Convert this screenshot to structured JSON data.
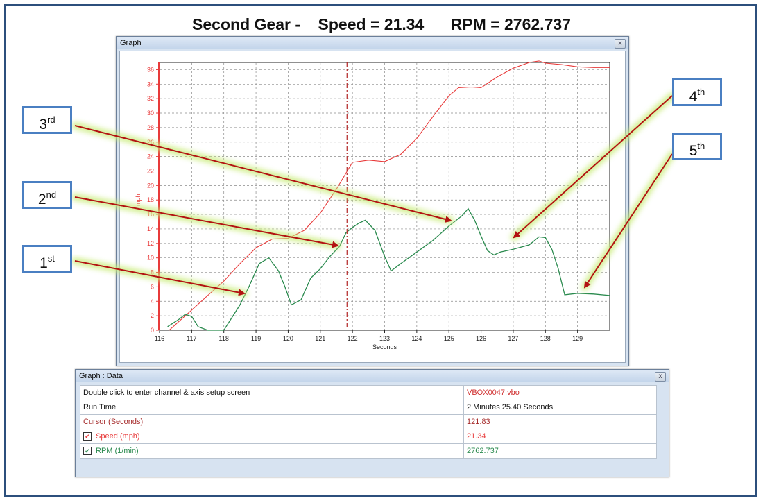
{
  "headline": {
    "gear": "Second Gear -",
    "speed": "Speed = 21.34",
    "rpm": "RPM = 2762.737"
  },
  "graph_window": {
    "title": "Graph",
    "close": "x"
  },
  "data_window": {
    "title": "Graph : Data",
    "close": "x",
    "rows": [
      {
        "label": "Double click to enter channel & axis setup screen",
        "value": "VBOX0047.vbo"
      },
      {
        "label": "Run Time",
        "value": "2 Minutes 25.40 Seconds"
      },
      {
        "label": "Cursor (Seconds)",
        "value": "121.83"
      },
      {
        "label": "Speed (mph)",
        "value": "21.34"
      },
      {
        "label": "RPM (1/min)",
        "value": "2762.737"
      }
    ]
  },
  "callouts": [
    {
      "num": "1",
      "sup": "st"
    },
    {
      "num": "2",
      "sup": "nd"
    },
    {
      "num": "3",
      "sup": "rd"
    },
    {
      "num": "4",
      "sup": "th"
    },
    {
      "num": "5",
      "sup": "th"
    }
  ],
  "colors": {
    "speed": "#e83a3a",
    "rpm": "#2a8a4e",
    "cursor": "#b22222",
    "arrow": "#b31212"
  },
  "chart_data": {
    "type": "line",
    "xlabel": "Seconds",
    "ylabel": "mph",
    "xlim": [
      116,
      130
    ],
    "ylim": [
      0,
      37
    ],
    "x_ticks": [
      116,
      117,
      118,
      119,
      120,
      121,
      122,
      123,
      124,
      125,
      126,
      127,
      128,
      129
    ],
    "y_ticks": [
      0,
      2,
      4,
      6,
      8,
      10,
      12,
      14,
      16,
      18,
      20,
      22,
      24,
      26,
      28,
      30,
      32,
      34,
      36
    ],
    "cursor_x": 121.83,
    "series": [
      {
        "name": "Speed (mph)",
        "x": [
          116.3,
          117,
          117.5,
          118,
          118.5,
          119,
          119.5,
          120,
          120.5,
          121,
          121.5,
          122,
          122.5,
          123,
          123.5,
          124,
          124.5,
          125,
          125.3,
          125.7,
          126,
          126.5,
          127,
          127.5,
          127.8,
          128,
          128.5,
          129,
          129.5,
          130
        ],
        "y": [
          0,
          2.8,
          4.8,
          6.8,
          9.2,
          11.4,
          12.6,
          12.7,
          13.8,
          16.2,
          19.5,
          23.2,
          23.5,
          23.3,
          24.3,
          26.5,
          29.5,
          32.4,
          33.5,
          33.6,
          33.5,
          35.0,
          36.2,
          37.0,
          37.2,
          36.9,
          36.7,
          36.4,
          36.3,
          36.3
        ]
      },
      {
        "name": "RPM (1/min)",
        "x": [
          116.25,
          116.6,
          116.8,
          117.0,
          117.2,
          117.5,
          118.0,
          118.5,
          118.8,
          119.1,
          119.4,
          119.7,
          119.9,
          120.1,
          120.4,
          120.7,
          121.0,
          121.3,
          121.6,
          121.8,
          122.0,
          122.2,
          122.4,
          122.7,
          123.0,
          123.2,
          123.5,
          124.0,
          124.5,
          125.0,
          125.4,
          125.6,
          125.8,
          126.0,
          126.2,
          126.4,
          126.6,
          127.0,
          127.5,
          127.8,
          128.0,
          128.2,
          128.4,
          128.6,
          129.0,
          129.5,
          130.0
        ],
        "y": [
          0.5,
          1.5,
          2.2,
          1.9,
          0.5,
          0,
          0,
          3.5,
          6.2,
          9.2,
          10.0,
          8.2,
          6.0,
          3.5,
          4.2,
          7.2,
          8.5,
          10.2,
          11.6,
          13.5,
          14.2,
          14.8,
          15.2,
          13.8,
          10.2,
          8.2,
          9.2,
          10.8,
          12.4,
          14.4,
          15.8,
          16.8,
          15.2,
          13.0,
          11.0,
          10.4,
          10.8,
          11.2,
          11.8,
          12.9,
          12.8,
          11.2,
          8.5,
          4.9,
          5.1,
          5.0,
          4.8
        ]
      }
    ]
  }
}
